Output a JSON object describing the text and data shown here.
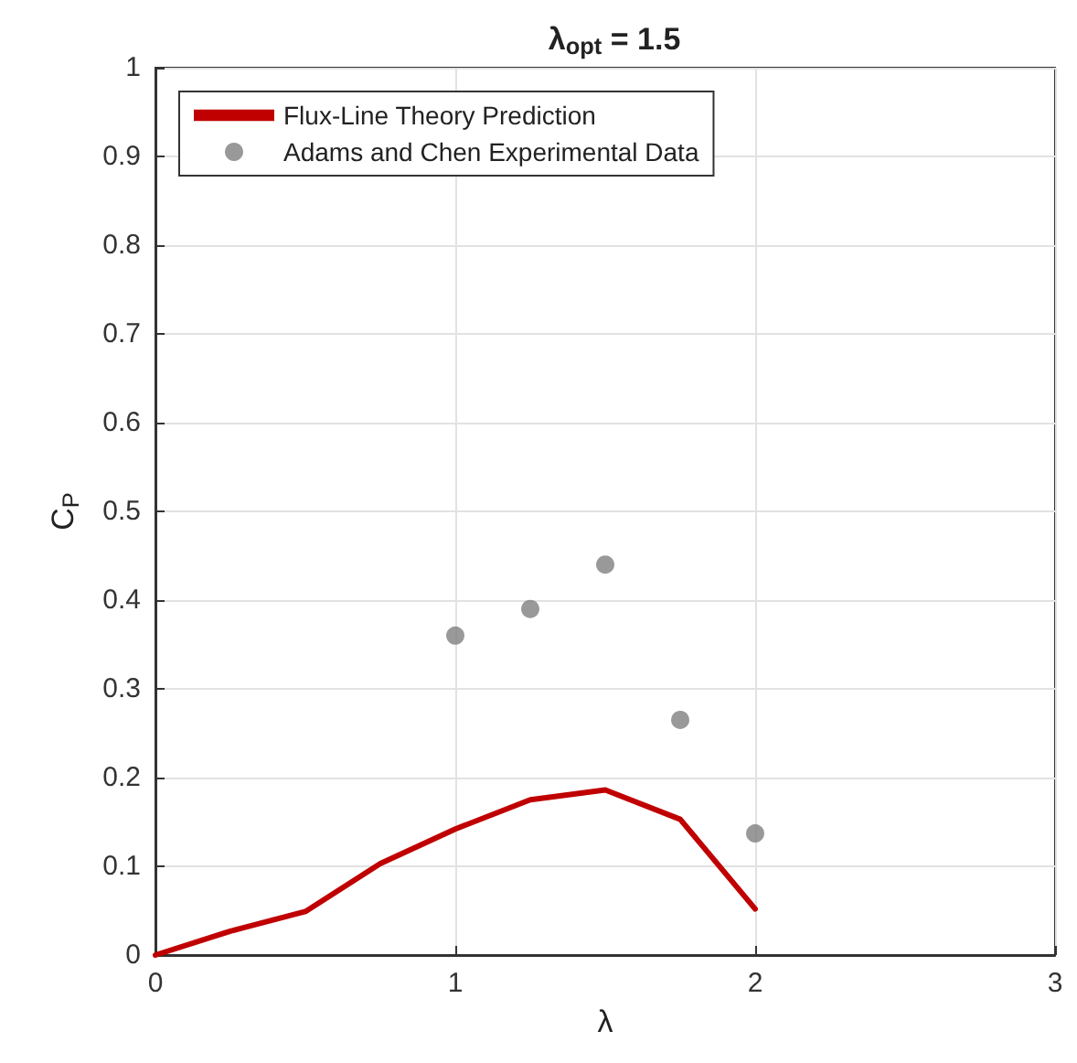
{
  "chart_data": {
    "type": "line",
    "title": "λ$_{opt}$ = 1.5",
    "xlabel": "λ",
    "ylabel": "C$_{P}$",
    "xlim": [
      0,
      3
    ],
    "xticks": [
      0,
      1,
      2,
      3
    ],
    "ylim": [
      0,
      1
    ],
    "yticks": [
      0,
      0.1,
      0.2,
      0.3,
      0.4,
      0.5,
      0.6,
      0.7,
      0.8,
      0.9,
      1
    ],
    "grid": true,
    "legend": "top left",
    "series": [
      {
        "name": "Flux-Line Theory Prediction",
        "color": "#c00000",
        "marker": "none",
        "line_style": "solid",
        "x": [
          0,
          0.25,
          0.5,
          0.75,
          1,
          1.25,
          1.5,
          1.75,
          2
        ],
        "values": [
          0,
          0.027,
          0.049,
          0.103,
          0.142,
          0.175,
          0.186,
          0.153,
          0.052
        ]
      },
      {
        "name": "Adams and Chen Experimental Data",
        "type": "scatter",
        "color": "#808080",
        "marker": "circle",
        "x": [
          1,
          1.25,
          1.5,
          1.75,
          2
        ],
        "values": [
          0.36,
          0.39,
          0.44,
          0.265,
          0.137
        ]
      }
    ]
  }
}
